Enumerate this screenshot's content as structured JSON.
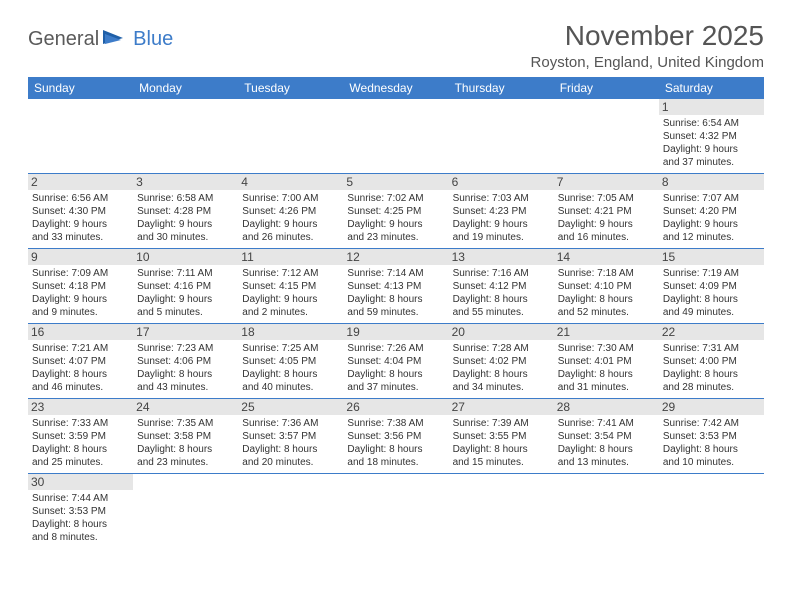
{
  "logo": {
    "text1": "General",
    "text2": "Blue"
  },
  "title": "November 2025",
  "location": "Royston, England, United Kingdom",
  "colors": {
    "header_bg": "#3d7cc9",
    "header_fg": "#ffffff",
    "daynum_bg": "#e6e6e6",
    "row_border": "#3d7cc9",
    "logo_gray": "#5a5a5a",
    "logo_blue": "#3d7cc9"
  },
  "weekdays": [
    "Sunday",
    "Monday",
    "Tuesday",
    "Wednesday",
    "Thursday",
    "Friday",
    "Saturday"
  ],
  "grid": [
    [
      null,
      null,
      null,
      null,
      null,
      null,
      {
        "n": "1",
        "sr": "Sunrise: 6:54 AM",
        "ss": "Sunset: 4:32 PM",
        "d1": "Daylight: 9 hours",
        "d2": "and 37 minutes."
      }
    ],
    [
      {
        "n": "2",
        "sr": "Sunrise: 6:56 AM",
        "ss": "Sunset: 4:30 PM",
        "d1": "Daylight: 9 hours",
        "d2": "and 33 minutes."
      },
      {
        "n": "3",
        "sr": "Sunrise: 6:58 AM",
        "ss": "Sunset: 4:28 PM",
        "d1": "Daylight: 9 hours",
        "d2": "and 30 minutes."
      },
      {
        "n": "4",
        "sr": "Sunrise: 7:00 AM",
        "ss": "Sunset: 4:26 PM",
        "d1": "Daylight: 9 hours",
        "d2": "and 26 minutes."
      },
      {
        "n": "5",
        "sr": "Sunrise: 7:02 AM",
        "ss": "Sunset: 4:25 PM",
        "d1": "Daylight: 9 hours",
        "d2": "and 23 minutes."
      },
      {
        "n": "6",
        "sr": "Sunrise: 7:03 AM",
        "ss": "Sunset: 4:23 PM",
        "d1": "Daylight: 9 hours",
        "d2": "and 19 minutes."
      },
      {
        "n": "7",
        "sr": "Sunrise: 7:05 AM",
        "ss": "Sunset: 4:21 PM",
        "d1": "Daylight: 9 hours",
        "d2": "and 16 minutes."
      },
      {
        "n": "8",
        "sr": "Sunrise: 7:07 AM",
        "ss": "Sunset: 4:20 PM",
        "d1": "Daylight: 9 hours",
        "d2": "and 12 minutes."
      }
    ],
    [
      {
        "n": "9",
        "sr": "Sunrise: 7:09 AM",
        "ss": "Sunset: 4:18 PM",
        "d1": "Daylight: 9 hours",
        "d2": "and 9 minutes."
      },
      {
        "n": "10",
        "sr": "Sunrise: 7:11 AM",
        "ss": "Sunset: 4:16 PM",
        "d1": "Daylight: 9 hours",
        "d2": "and 5 minutes."
      },
      {
        "n": "11",
        "sr": "Sunrise: 7:12 AM",
        "ss": "Sunset: 4:15 PM",
        "d1": "Daylight: 9 hours",
        "d2": "and 2 minutes."
      },
      {
        "n": "12",
        "sr": "Sunrise: 7:14 AM",
        "ss": "Sunset: 4:13 PM",
        "d1": "Daylight: 8 hours",
        "d2": "and 59 minutes."
      },
      {
        "n": "13",
        "sr": "Sunrise: 7:16 AM",
        "ss": "Sunset: 4:12 PM",
        "d1": "Daylight: 8 hours",
        "d2": "and 55 minutes."
      },
      {
        "n": "14",
        "sr": "Sunrise: 7:18 AM",
        "ss": "Sunset: 4:10 PM",
        "d1": "Daylight: 8 hours",
        "d2": "and 52 minutes."
      },
      {
        "n": "15",
        "sr": "Sunrise: 7:19 AM",
        "ss": "Sunset: 4:09 PM",
        "d1": "Daylight: 8 hours",
        "d2": "and 49 minutes."
      }
    ],
    [
      {
        "n": "16",
        "sr": "Sunrise: 7:21 AM",
        "ss": "Sunset: 4:07 PM",
        "d1": "Daylight: 8 hours",
        "d2": "and 46 minutes."
      },
      {
        "n": "17",
        "sr": "Sunrise: 7:23 AM",
        "ss": "Sunset: 4:06 PM",
        "d1": "Daylight: 8 hours",
        "d2": "and 43 minutes."
      },
      {
        "n": "18",
        "sr": "Sunrise: 7:25 AM",
        "ss": "Sunset: 4:05 PM",
        "d1": "Daylight: 8 hours",
        "d2": "and 40 minutes."
      },
      {
        "n": "19",
        "sr": "Sunrise: 7:26 AM",
        "ss": "Sunset: 4:04 PM",
        "d1": "Daylight: 8 hours",
        "d2": "and 37 minutes."
      },
      {
        "n": "20",
        "sr": "Sunrise: 7:28 AM",
        "ss": "Sunset: 4:02 PM",
        "d1": "Daylight: 8 hours",
        "d2": "and 34 minutes."
      },
      {
        "n": "21",
        "sr": "Sunrise: 7:30 AM",
        "ss": "Sunset: 4:01 PM",
        "d1": "Daylight: 8 hours",
        "d2": "and 31 minutes."
      },
      {
        "n": "22",
        "sr": "Sunrise: 7:31 AM",
        "ss": "Sunset: 4:00 PM",
        "d1": "Daylight: 8 hours",
        "d2": "and 28 minutes."
      }
    ],
    [
      {
        "n": "23",
        "sr": "Sunrise: 7:33 AM",
        "ss": "Sunset: 3:59 PM",
        "d1": "Daylight: 8 hours",
        "d2": "and 25 minutes."
      },
      {
        "n": "24",
        "sr": "Sunrise: 7:35 AM",
        "ss": "Sunset: 3:58 PM",
        "d1": "Daylight: 8 hours",
        "d2": "and 23 minutes."
      },
      {
        "n": "25",
        "sr": "Sunrise: 7:36 AM",
        "ss": "Sunset: 3:57 PM",
        "d1": "Daylight: 8 hours",
        "d2": "and 20 minutes."
      },
      {
        "n": "26",
        "sr": "Sunrise: 7:38 AM",
        "ss": "Sunset: 3:56 PM",
        "d1": "Daylight: 8 hours",
        "d2": "and 18 minutes."
      },
      {
        "n": "27",
        "sr": "Sunrise: 7:39 AM",
        "ss": "Sunset: 3:55 PM",
        "d1": "Daylight: 8 hours",
        "d2": "and 15 minutes."
      },
      {
        "n": "28",
        "sr": "Sunrise: 7:41 AM",
        "ss": "Sunset: 3:54 PM",
        "d1": "Daylight: 8 hours",
        "d2": "and 13 minutes."
      },
      {
        "n": "29",
        "sr": "Sunrise: 7:42 AM",
        "ss": "Sunset: 3:53 PM",
        "d1": "Daylight: 8 hours",
        "d2": "and 10 minutes."
      }
    ],
    [
      {
        "n": "30",
        "sr": "Sunrise: 7:44 AM",
        "ss": "Sunset: 3:53 PM",
        "d1": "Daylight: 8 hours",
        "d2": "and 8 minutes."
      },
      null,
      null,
      null,
      null,
      null,
      null
    ]
  ]
}
